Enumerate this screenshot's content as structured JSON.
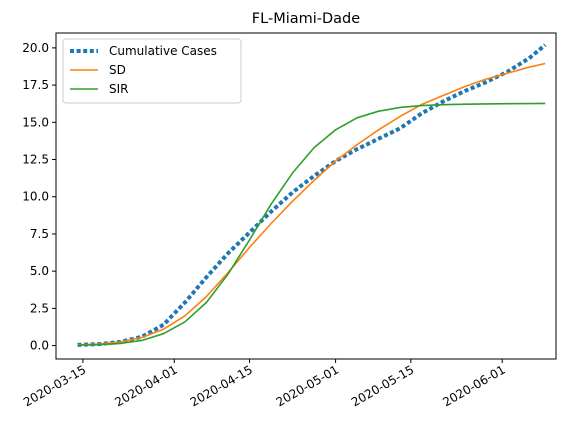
{
  "chart_data": {
    "type": "line",
    "title": "FL-Miami-Dade",
    "xlabel": "",
    "ylabel": "",
    "x_axis": {
      "type": "date",
      "range": [
        "2020-03-10",
        "2020-06-11"
      ],
      "ticks": [
        "2020-03-15",
        "2020-04-01",
        "2020-04-15",
        "2020-05-01",
        "2020-05-15",
        "2020-06-01"
      ]
    },
    "y_axis": {
      "range": [
        -0.9,
        21.0
      ],
      "ticks": [
        "0.0",
        "2.5",
        "5.0",
        "7.5",
        "10.0",
        "12.5",
        "15.0",
        "17.5",
        "20.0"
      ]
    },
    "grid": false,
    "legend": {
      "position": "top-left"
    },
    "series": [
      {
        "name": "Cumulative Cases",
        "color": "#1f77b4",
        "style": "dotted",
        "points": [
          [
            "2020-03-14",
            0.05
          ],
          [
            "2020-03-18",
            0.1
          ],
          [
            "2020-03-22",
            0.25
          ],
          [
            "2020-03-26",
            0.6
          ],
          [
            "2020-03-30",
            1.4
          ],
          [
            "2020-04-03",
            2.9
          ],
          [
            "2020-04-07",
            4.6
          ],
          [
            "2020-04-11",
            6.2
          ],
          [
            "2020-04-15",
            7.6
          ],
          [
            "2020-04-19",
            9.0
          ],
          [
            "2020-04-23",
            10.3
          ],
          [
            "2020-04-27",
            11.4
          ],
          [
            "2020-05-01",
            12.4
          ],
          [
            "2020-05-05",
            13.2
          ],
          [
            "2020-05-09",
            13.9
          ],
          [
            "2020-05-13",
            14.6
          ],
          [
            "2020-05-17",
            15.6
          ],
          [
            "2020-05-21",
            16.4
          ],
          [
            "2020-05-25",
            17.1
          ],
          [
            "2020-05-29",
            17.7
          ],
          [
            "2020-06-02",
            18.4
          ],
          [
            "2020-06-06",
            19.3
          ],
          [
            "2020-06-09",
            20.2
          ]
        ]
      },
      {
        "name": "SD",
        "color": "#ff7f0e",
        "style": "solid",
        "points": [
          [
            "2020-03-14",
            0.05
          ],
          [
            "2020-03-18",
            0.1
          ],
          [
            "2020-03-22",
            0.25
          ],
          [
            "2020-03-26",
            0.55
          ],
          [
            "2020-03-30",
            1.1
          ],
          [
            "2020-04-03",
            2.0
          ],
          [
            "2020-04-07",
            3.3
          ],
          [
            "2020-04-11",
            4.9
          ],
          [
            "2020-04-15",
            6.6
          ],
          [
            "2020-04-19",
            8.2
          ],
          [
            "2020-04-23",
            9.7
          ],
          [
            "2020-04-27",
            11.1
          ],
          [
            "2020-05-01",
            12.4
          ],
          [
            "2020-05-05",
            13.5
          ],
          [
            "2020-05-09",
            14.5
          ],
          [
            "2020-05-13",
            15.4
          ],
          [
            "2020-05-17",
            16.2
          ],
          [
            "2020-05-21",
            16.8
          ],
          [
            "2020-05-25",
            17.4
          ],
          [
            "2020-05-29",
            17.9
          ],
          [
            "2020-06-02",
            18.3
          ],
          [
            "2020-06-06",
            18.7
          ],
          [
            "2020-06-09",
            18.95
          ]
        ]
      },
      {
        "name": "SIR",
        "color": "#2ca02c",
        "style": "solid",
        "points": [
          [
            "2020-03-14",
            0.03
          ],
          [
            "2020-03-18",
            0.06
          ],
          [
            "2020-03-22",
            0.15
          ],
          [
            "2020-03-26",
            0.35
          ],
          [
            "2020-03-30",
            0.8
          ],
          [
            "2020-04-03",
            1.6
          ],
          [
            "2020-04-07",
            2.9
          ],
          [
            "2020-04-11",
            4.8
          ],
          [
            "2020-04-15",
            7.1
          ],
          [
            "2020-04-19",
            9.5
          ],
          [
            "2020-04-23",
            11.6
          ],
          [
            "2020-04-27",
            13.3
          ],
          [
            "2020-05-01",
            14.5
          ],
          [
            "2020-05-05",
            15.3
          ],
          [
            "2020-05-09",
            15.75
          ],
          [
            "2020-05-13",
            16.0
          ],
          [
            "2020-05-17",
            16.12
          ],
          [
            "2020-05-21",
            16.18
          ],
          [
            "2020-05-25",
            16.22
          ],
          [
            "2020-05-29",
            16.24
          ],
          [
            "2020-06-02",
            16.25
          ],
          [
            "2020-06-06",
            16.26
          ],
          [
            "2020-06-09",
            16.27
          ]
        ]
      }
    ]
  }
}
